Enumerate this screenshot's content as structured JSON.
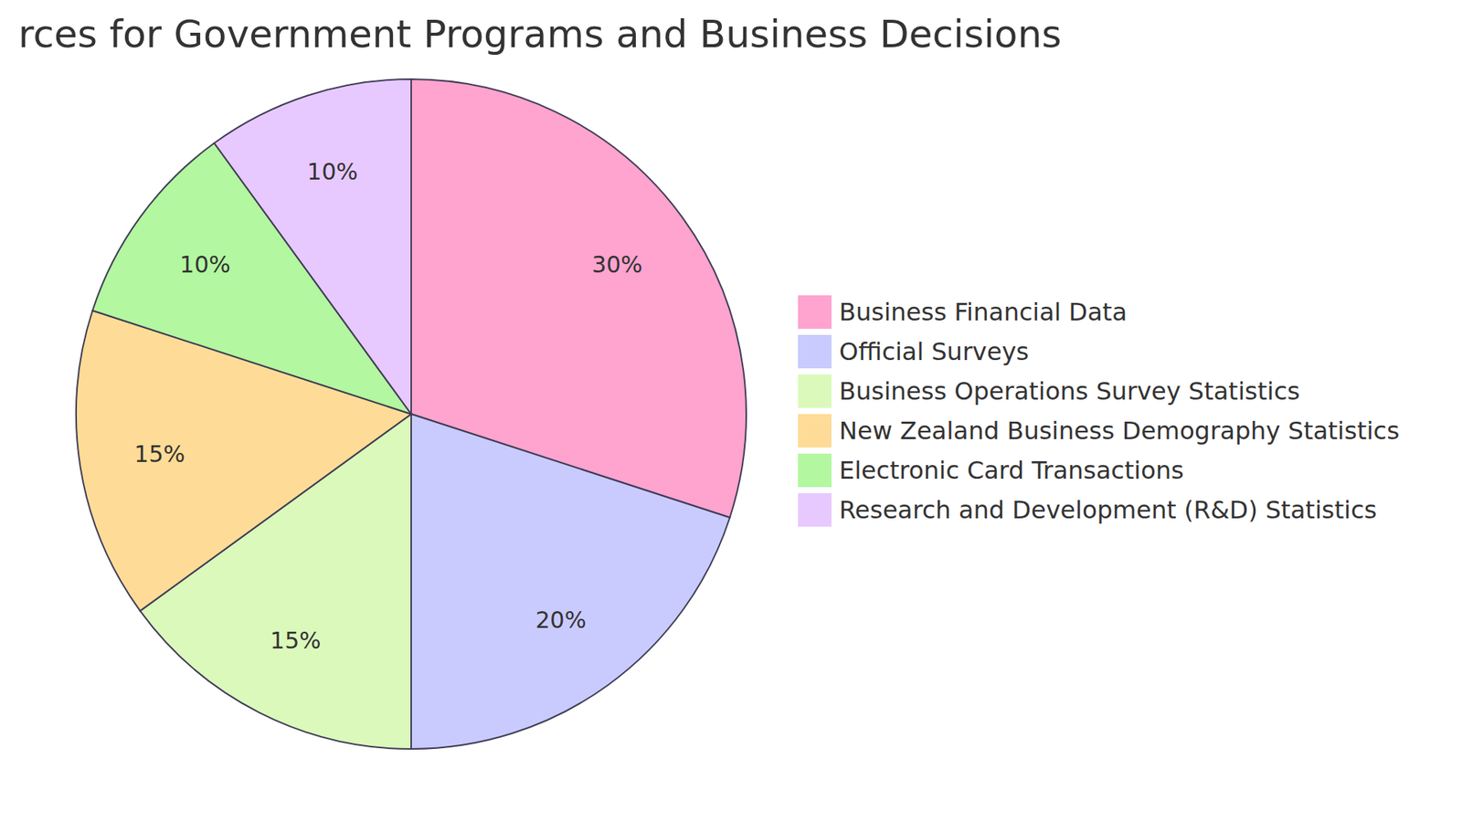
{
  "chart_data": {
    "type": "pie",
    "title": "rces for Government Programs and Business Decisions",
    "categories": [
      "Business Financial Data",
      "Official Surveys",
      "Business Operations Survey Statistics",
      "New Zealand Business Demography Statistics",
      "Electronic Card Transactions",
      "Research and Development (R&D) Statistics"
    ],
    "values": [
      30,
      20,
      15,
      15,
      10,
      10
    ],
    "value_labels": [
      "30%",
      "20%",
      "15%",
      "15%",
      "10%",
      "10%"
    ],
    "colors": [
      "#ffa3cf",
      "#c9cbff",
      "#dbf9bb",
      "#fedc97",
      "#b3f7a0",
      "#e8c9ff"
    ],
    "data_labels": true,
    "legend": "right"
  }
}
